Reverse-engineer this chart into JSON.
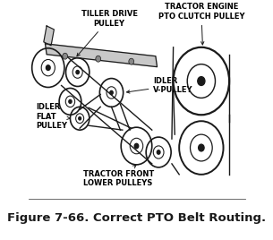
{
  "background_color": "#ffffff",
  "title": "Figure 7-66. Correct PTO Belt Routing.",
  "title_fontsize": 9.5,
  "title_weight": "bold",
  "labels": {
    "tiller_drive": {
      "text": "TILLER DRIVE\nPULLEY",
      "fontsize": 6.0,
      "weight": "bold"
    },
    "pto_clutch": {
      "text": "TRACTOR ENGINE\nPTO CLUTCH PULLEY",
      "fontsize": 6.0,
      "weight": "bold"
    },
    "idler_v": {
      "text": "IDLER\nV-PULLEY",
      "fontsize": 6.0,
      "weight": "bold"
    },
    "idler_flat": {
      "text": "IDLER\nFLAT\nPULLEY",
      "fontsize": 6.0,
      "weight": "bold"
    },
    "front_lower": {
      "text": "TRACTOR FRONT\nLOWER PULLEYS",
      "fontsize": 6.0,
      "weight": "bold"
    }
  },
  "line_color": "#1a1a1a",
  "belt_color": "#1a1a1a",
  "belt_lw": 1.0,
  "pulley_lw": 1.2
}
